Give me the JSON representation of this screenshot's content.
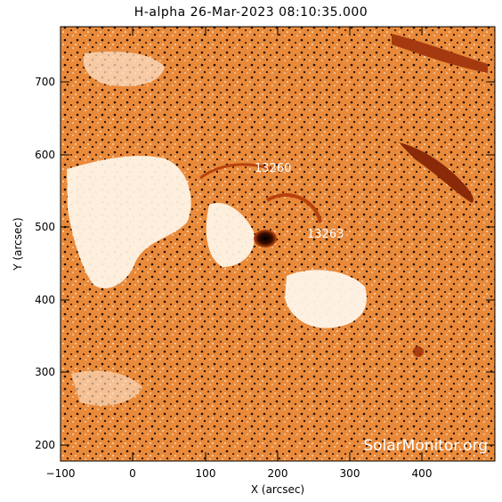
{
  "title": "H-alpha 26-Mar-2023 08:10:35.000",
  "x_axis": {
    "label": "X (arcsec)",
    "ticks": [
      "−100",
      "0",
      "100",
      "200",
      "300",
      "400"
    ]
  },
  "y_axis": {
    "label": "Y (arcsec)",
    "ticks": [
      "200",
      "300",
      "400",
      "500",
      "600",
      "700"
    ]
  },
  "active_regions": [
    "13260",
    "13263"
  ],
  "watermark": "SolarMonitor.org",
  "colors": {
    "chromosphere": "#e87820",
    "bright": "#ffffff",
    "dark": "#1a0a00",
    "sunspot": "#2a0800"
  }
}
